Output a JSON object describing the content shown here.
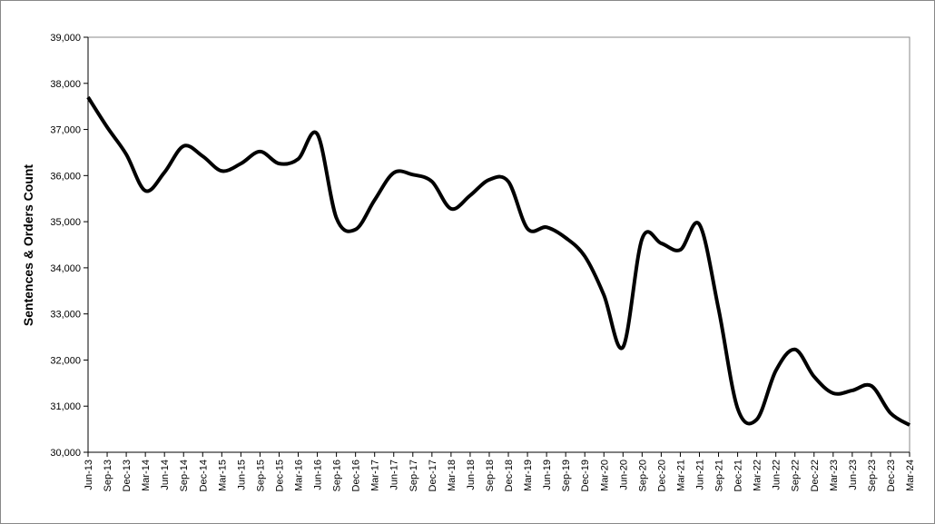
{
  "chart_data": {
    "type": "line",
    "y_label": "Sentences & Orders Count",
    "color": "#000000",
    "smooth": true,
    "categories": [
      "Jun-13",
      "Sep-13",
      "Dec-13",
      "Mar-14",
      "Jun-14",
      "Sep-14",
      "Dec-14",
      "Mar-15",
      "Jun-15",
      "Sep-15",
      "Dec-15",
      "Mar-16",
      "Jun-16",
      "Sep-16",
      "Dec-16",
      "Mar-17",
      "Jun-17",
      "Sep-17",
      "Dec-17",
      "Mar-18",
      "Jun-18",
      "Sep-18",
      "Dec-18",
      "Mar-19",
      "Jun-19",
      "Sep-19",
      "Dec-19",
      "Mar-20",
      "Jun-20",
      "Sep-20",
      "Dec-20",
      "Mar-21",
      "Jun-21",
      "Sep-21",
      "Dec-21",
      "Mar-22",
      "Jun-22",
      "Sep-22",
      "Dec-22",
      "Mar-23",
      "Jun-23",
      "Sep-23",
      "Dec-23",
      "Mar-24"
    ],
    "values": [
      37700,
      37050,
      36460,
      35670,
      36070,
      36640,
      36420,
      36100,
      36260,
      36520,
      36260,
      36360,
      36900,
      35080,
      34830,
      35470,
      36060,
      36020,
      35870,
      35280,
      35570,
      35910,
      35870,
      34850,
      34880,
      34650,
      34250,
      33410,
      32280,
      34630,
      34530,
      34390,
      34940,
      33110,
      30950,
      30710,
      31770,
      32230,
      31640,
      31280,
      31340,
      31440,
      30850,
      30590
    ],
    "ylim": [
      30000,
      39000
    ],
    "yticks": [
      {
        "value": 30000,
        "label": "30,000"
      },
      {
        "value": 31000,
        "label": "31,000"
      },
      {
        "value": 32000,
        "label": "32,000"
      },
      {
        "value": 33000,
        "label": "33,000"
      },
      {
        "value": 34000,
        "label": "34,000"
      },
      {
        "value": 35000,
        "label": "35,000"
      },
      {
        "value": 36000,
        "label": "36,000"
      },
      {
        "value": 37000,
        "label": "37,000"
      },
      {
        "value": 38000,
        "label": "38,000"
      },
      {
        "value": 39000,
        "label": "39,000"
      }
    ],
    "grid": false
  }
}
